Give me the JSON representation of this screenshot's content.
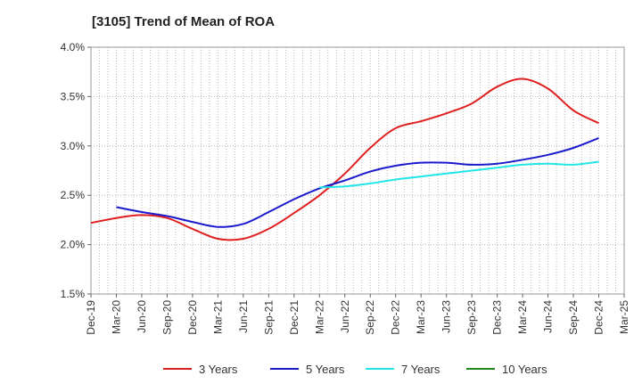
{
  "chart_data": {
    "type": "line",
    "title": "[3105]  Trend of Mean of ROA",
    "xlabel": "",
    "ylabel": "",
    "x_ticks": [
      "Dec-19",
      "Mar-20",
      "Jun-20",
      "Sep-20",
      "Dec-20",
      "Mar-21",
      "Jun-21",
      "Sep-21",
      "Dec-21",
      "Mar-22",
      "Jun-22",
      "Sep-22",
      "Dec-22",
      "Mar-23",
      "Jun-23",
      "Sep-23",
      "Dec-23",
      "Mar-24",
      "Jun-24",
      "Sep-24",
      "Dec-24",
      "Mar-25"
    ],
    "y_ticks": [
      "1.5%",
      "2.0%",
      "2.5%",
      "3.0%",
      "3.5%",
      "4.0%"
    ],
    "ylim": [
      1.5,
      4.0
    ],
    "grid": "dotted",
    "legend_position": "bottom",
    "series": [
      {
        "name": "3 Years",
        "color": "#e02020",
        "values": [
          [
            "Dec-19",
            2.22
          ],
          [
            "Mar-20",
            2.27
          ],
          [
            "Jun-20",
            2.3
          ],
          [
            "Sep-20",
            2.27
          ],
          [
            "Dec-20",
            2.16
          ],
          [
            "Mar-21",
            2.06
          ],
          [
            "Jun-21",
            2.06
          ],
          [
            "Sep-21",
            2.16
          ],
          [
            "Dec-21",
            2.32
          ],
          [
            "Mar-22",
            2.5
          ],
          [
            "Jun-22",
            2.72
          ],
          [
            "Sep-22",
            2.98
          ],
          [
            "Dec-22",
            3.18
          ],
          [
            "Mar-23",
            3.25
          ],
          [
            "Jun-23",
            3.33
          ],
          [
            "Sep-23",
            3.43
          ],
          [
            "Dec-23",
            3.6
          ],
          [
            "Mar-24",
            3.68
          ],
          [
            "Jun-24",
            3.58
          ],
          [
            "Sep-24",
            3.36
          ],
          [
            "Dec-24",
            3.23
          ]
        ]
      },
      {
        "name": "5 Years",
        "color": "#1a1acc",
        "values": [
          [
            "Mar-20",
            2.38
          ],
          [
            "Jun-20",
            2.33
          ],
          [
            "Sep-20",
            2.29
          ],
          [
            "Dec-20",
            2.23
          ],
          [
            "Mar-21",
            2.18
          ],
          [
            "Jun-21",
            2.21
          ],
          [
            "Sep-21",
            2.33
          ],
          [
            "Dec-21",
            2.46
          ],
          [
            "Mar-22",
            2.57
          ],
          [
            "Jun-22",
            2.65
          ],
          [
            "Sep-22",
            2.74
          ],
          [
            "Dec-22",
            2.8
          ],
          [
            "Mar-23",
            2.83
          ],
          [
            "Jun-23",
            2.83
          ],
          [
            "Sep-23",
            2.81
          ],
          [
            "Dec-23",
            2.82
          ],
          [
            "Mar-24",
            2.86
          ],
          [
            "Jun-24",
            2.91
          ],
          [
            "Sep-24",
            2.98
          ],
          [
            "Dec-24",
            3.08
          ]
        ]
      },
      {
        "name": "7 Years",
        "color": "#22e5e5",
        "values": [
          [
            "Mar-22",
            2.58
          ],
          [
            "Jun-22",
            2.59
          ],
          [
            "Sep-22",
            2.62
          ],
          [
            "Dec-22",
            2.66
          ],
          [
            "Mar-23",
            2.69
          ],
          [
            "Jun-23",
            2.72
          ],
          [
            "Sep-23",
            2.75
          ],
          [
            "Dec-23",
            2.78
          ],
          [
            "Mar-24",
            2.81
          ],
          [
            "Jun-24",
            2.82
          ],
          [
            "Sep-24",
            2.81
          ],
          [
            "Dec-24",
            2.84
          ]
        ]
      },
      {
        "name": "10 Years",
        "color": "#1f8a1f",
        "values": []
      }
    ]
  }
}
